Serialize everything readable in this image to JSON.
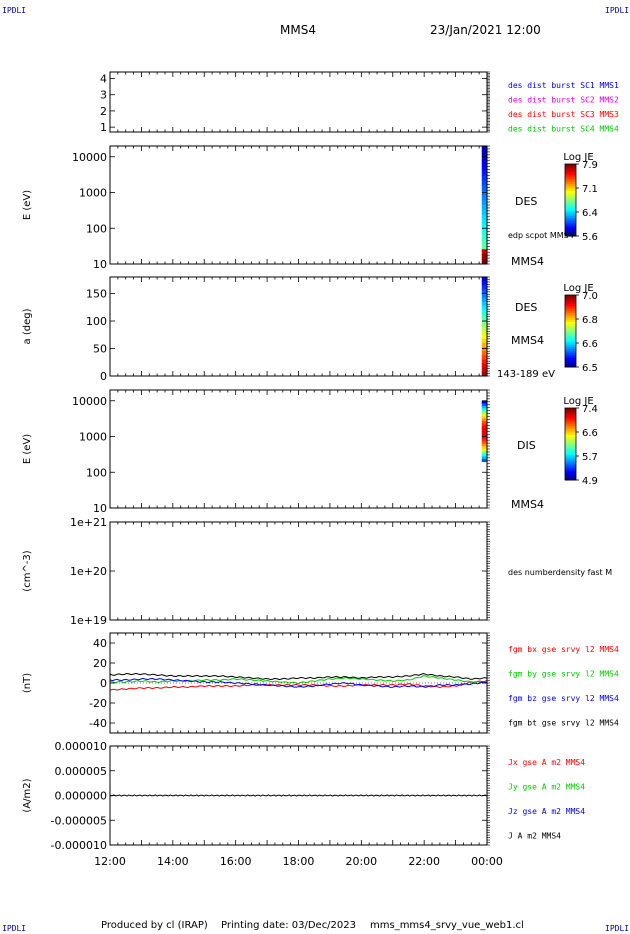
{
  "corners": {
    "tl": "IPDLI",
    "tr": "IPDLI",
    "bl": "IPDLI",
    "br": "IPDLI"
  },
  "header": {
    "spacecraft": "MMS4",
    "date": "23/Jan/2021 12:00"
  },
  "footer": {
    "produced": "Produced by cl (IRAP)",
    "printing": "Printing date: 03/Dec/2023",
    "file": "mms_mms4_srvy_vue_web1.cl"
  },
  "colors": {
    "blue": "#0000ff",
    "magenta": "#dd00dd",
    "red": "#ff0000",
    "green": "#00cc00",
    "black": "#000000"
  },
  "chart_data": [
    {
      "type": "line",
      "panel": "burst-flags",
      "yticks": [
        "1",
        "2",
        "3",
        "4"
      ],
      "ylim": [
        0.7,
        4.4
      ],
      "legend": [
        {
          "label": "des dist burst SC1 MMS1",
          "color": "#0000ff"
        },
        {
          "label": "des dist burst SC2 MMS2",
          "color": "#dd00dd"
        },
        {
          "label": "des dist burst SC3 MMS3",
          "color": "#ff0000"
        },
        {
          "label": "des dist burst SC4 MMS4",
          "color": "#00cc00"
        }
      ]
    },
    {
      "type": "heatmap",
      "panel": "des-energy",
      "ylabel": "E (eV)",
      "yscale": "log",
      "ylim": [
        10,
        20000
      ],
      "yticks": [
        "10",
        "100",
        "1000",
        "10000"
      ],
      "data_interval": {
        "start": "23:50",
        "end": "00:00",
        "y_range": [
          8,
          20000
        ]
      },
      "right_labels": [
        "DES",
        "edp scpot MMS4",
        "MMS4"
      ],
      "colorbar": {
        "title": "Log JE",
        "ticks": [
          "7.9",
          "7.1",
          "6.4",
          "5.6"
        ]
      }
    },
    {
      "type": "heatmap",
      "panel": "des-pitch",
      "ylabel": "a (deg)",
      "ylim": [
        0,
        180
      ],
      "yticks": [
        "0",
        "50",
        "100",
        "150"
      ],
      "data_interval": {
        "start": "23:50",
        "end": "00:00",
        "y_range": [
          0,
          180
        ]
      },
      "right_labels": [
        "DES",
        "MMS4",
        "143-189 eV"
      ],
      "colorbar": {
        "title": "Log JE",
        "ticks": [
          "7.0",
          "6.8",
          "6.6",
          "6.5"
        ]
      }
    },
    {
      "type": "heatmap",
      "panel": "dis-energy",
      "ylabel": "E (eV)",
      "yscale": "log",
      "ylim": [
        10,
        20000
      ],
      "yticks": [
        "10",
        "100",
        "1000",
        "10000"
      ],
      "data_interval": {
        "start": "23:50",
        "end": "00:00",
        "y_range": [
          200,
          10000
        ]
      },
      "right_labels": [
        "DIS",
        "MMS4"
      ],
      "colorbar": {
        "title": "Log JE",
        "ticks": [
          "7.4",
          "6.6",
          "5.7",
          "4.9"
        ]
      }
    },
    {
      "type": "line",
      "panel": "density",
      "ylabel": "(cm^-3)",
      "yscale": "log",
      "ylim": [
        1e+19,
        1e+21
      ],
      "yticks": [
        "1e+19",
        "1e+20",
        "1e+21"
      ],
      "right_labels": [
        "des numberdensity fast M"
      ]
    },
    {
      "type": "line",
      "panel": "magnetic-field",
      "ylabel": "(nT)",
      "ylim": [
        -50,
        50
      ],
      "yticks": [
        "-40",
        "-20",
        "0",
        "20",
        "40"
      ],
      "x_hours": [
        0,
        0.5,
        1,
        1.5,
        2,
        2.5,
        3,
        3.5,
        4,
        4.5,
        5,
        5.5,
        6,
        6.5,
        7,
        7.5,
        8,
        8.5,
        9,
        9.5,
        10,
        10.5,
        11,
        11.5,
        12
      ],
      "series": [
        {
          "name": "fgm bx gse srvy l2 MMS4",
          "color": "#ff0000",
          "values": [
            -7,
            -6,
            -5,
            -5,
            -4,
            -4,
            -3,
            -3,
            -3,
            -2,
            -2,
            -2,
            -2,
            -2,
            -3,
            -3,
            -2,
            -2,
            -2,
            -1,
            -3,
            -4,
            -3,
            1,
            2
          ]
        },
        {
          "name": "fgm by gse srvy l2 MMS4",
          "color": "#00cc00",
          "values": [
            1,
            1,
            2,
            1,
            2,
            2,
            3,
            3,
            4,
            3,
            2,
            1,
            0,
            2,
            4,
            5,
            4,
            3,
            2,
            3,
            7,
            5,
            3,
            1,
            1
          ]
        },
        {
          "name": "fgm bz gse srvy l2 MMS4",
          "color": "#0000ff",
          "values": [
            3,
            3,
            4,
            4,
            3,
            2,
            1,
            1,
            0,
            -1,
            -2,
            -3,
            -4,
            -3,
            -1,
            0,
            -2,
            -3,
            -4,
            -3,
            -4,
            -2,
            -2,
            -1,
            1
          ]
        },
        {
          "name": "fgm bt gse srvy l2 MMS4",
          "color": "#000000",
          "values": [
            8,
            9,
            9,
            8,
            7,
            7,
            7,
            7,
            6,
            5,
            4,
            4,
            5,
            5,
            6,
            6,
            5,
            6,
            6,
            7,
            9,
            7,
            6,
            4,
            5
          ]
        }
      ]
    },
    {
      "type": "line",
      "panel": "current-density",
      "ylabel": "(A/m2)",
      "ylim": [
        -1e-05,
        1e-05
      ],
      "yticks": [
        "-0.000010",
        "-0.000005",
        "0.000000",
        "0.000005",
        "0.000010"
      ],
      "series": [
        {
          "name": "Jx gse A m2 MMS4",
          "color": "#ff0000",
          "values": [
            0,
            0
          ]
        },
        {
          "name": "Jy gse A m2 MMS4",
          "color": "#00cc00",
          "values": [
            0,
            0
          ]
        },
        {
          "name": "Jz gse A m2 MMS4",
          "color": "#0000ff",
          "values": [
            0,
            0
          ]
        },
        {
          "name": "J A m2 MMS4",
          "color": "#000000",
          "values": [
            0,
            0
          ]
        }
      ],
      "xticks": [
        "12:00",
        "14:00",
        "16:00",
        "18:00",
        "20:00",
        "22:00",
        "00:00"
      ]
    }
  ]
}
